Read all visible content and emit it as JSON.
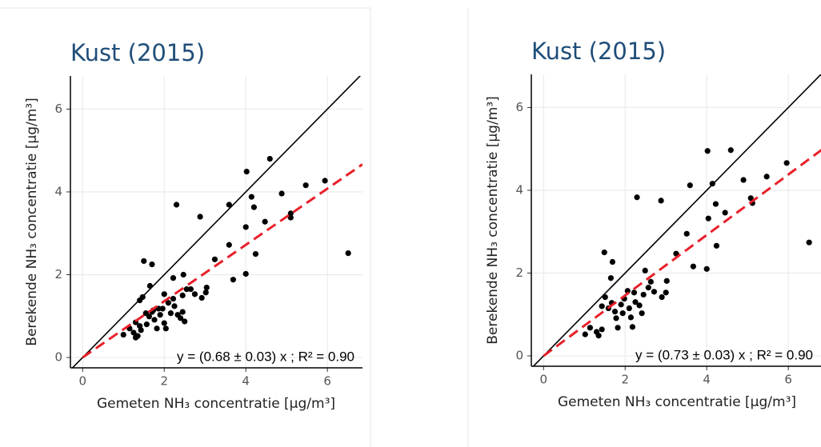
{
  "chart_data": [
    {
      "type": "scatter",
      "title": "Kust (2015)",
      "x_label": "Gemeten NH₃ concentratie [µg/m³]",
      "y_label": "Berekende NH₃ concentratie [µg/m³]",
      "annotation": "y = (0.68 ± 0.03) x ; R² = 0.90",
      "fit_slope": 0.68,
      "color": "#000000",
      "fit_color": "#e8202a",
      "grid": true,
      "xlim": [
        -0.3,
        6.86
      ],
      "ylim": [
        -0.25,
        6.8
      ],
      "xticks": [
        0,
        2,
        4,
        6
      ],
      "yticks": [
        0,
        2,
        4,
        6
      ],
      "x": [
        1.0,
        1.15,
        1.25,
        1.35,
        1.43,
        1.3,
        1.4,
        1.5,
        1.7,
        1.65,
        1.47,
        1.4,
        1.55,
        1.63,
        1.7,
        1.76,
        1.82,
        1.9,
        1.86,
        1.96,
        2.0,
        2.04,
        2.1,
        2.16,
        2.22,
        2.25,
        2.22,
        2.3,
        2.33,
        2.4,
        2.45,
        2.5,
        2.45,
        2.55,
        2.65,
        2.75,
        2.92,
        3.02,
        2.88,
        3.04,
        3.24,
        3.59,
        3.59,
        3.69,
        4.0,
        4.0,
        4.02,
        4.14,
        4.2,
        4.24,
        4.47,
        4.59,
        4.88,
        5.1,
        5.1,
        5.47,
        5.94,
        6.51,
        1.3,
        1.73,
        1.57,
        2.0,
        2.47
      ],
      "values": [
        0.55,
        0.7,
        0.6,
        0.52,
        0.66,
        0.48,
        0.76,
        2.33,
        2.25,
        1.73,
        1.46,
        1.38,
        1.07,
        0.99,
        1.1,
        0.91,
        0.7,
        1.03,
        1.18,
        1.18,
        0.83,
        0.7,
        1.32,
        1.07,
        1.42,
        1.24,
        1.92,
        3.69,
        1.03,
        0.95,
        1.1,
        0.87,
        1.5,
        1.65,
        1.65,
        1.53,
        1.44,
        1.57,
        3.4,
        1.69,
        2.37,
        3.69,
        2.72,
        1.88,
        2.02,
        3.15,
        4.49,
        3.88,
        3.63,
        2.5,
        3.28,
        4.8,
        3.96,
        3.48,
        3.38,
        4.16,
        4.27,
        2.52,
        0.85,
        1.14,
        0.8,
        1.53,
        2.0
      ]
    },
    {
      "type": "scatter",
      "title": "Kust (2015)",
      "x_label": "Gemeten NH₃ concentratie [µg/m³]",
      "y_label": "Berekende NH₃ concentratie [µg/m³]",
      "annotation": "y = (0.73 ± 0.03) x ; R² = 0.90",
      "fit_slope": 0.73,
      "color": "#000000",
      "fit_color": "#e8202a",
      "grid": true,
      "xlim": [
        -0.3,
        6.86
      ],
      "ylim": [
        -0.25,
        6.8
      ],
      "xticks": [
        0,
        2,
        4,
        6
      ],
      "yticks": [
        0,
        2,
        4,
        6
      ],
      "x": [
        1.02,
        1.14,
        1.3,
        1.35,
        1.43,
        1.49,
        1.69,
        1.65,
        1.51,
        1.43,
        1.59,
        1.67,
        1.75,
        1.78,
        1.82,
        1.9,
        1.94,
        1.98,
        2.06,
        2.1,
        2.14,
        2.18,
        2.22,
        2.25,
        2.29,
        2.35,
        2.41,
        2.45,
        2.49,
        2.57,
        2.63,
        2.71,
        2.88,
        2.9,
        3.0,
        3.02,
        3.25,
        3.51,
        3.59,
        3.67,
        4.0,
        4.04,
        4.02,
        4.14,
        4.22,
        4.24,
        4.45,
        4.59,
        4.9,
        5.08,
        5.12,
        5.47,
        5.96,
        6.51
      ],
      "values": [
        0.52,
        0.68,
        0.58,
        0.49,
        0.64,
        2.5,
        2.27,
        1.88,
        1.42,
        1.2,
        1.15,
        1.28,
        1.07,
        0.91,
        0.68,
        1.24,
        1.03,
        1.38,
        1.57,
        1.15,
        0.93,
        0.7,
        1.53,
        1.3,
        3.83,
        1.22,
        1.03,
        1.48,
        2.06,
        1.65,
        1.79,
        1.55,
        3.75,
        1.42,
        1.53,
        1.81,
        2.47,
        2.95,
        4.12,
        2.16,
        2.1,
        3.32,
        4.95,
        4.16,
        3.67,
        2.66,
        3.46,
        4.97,
        4.25,
        3.81,
        3.69,
        4.33,
        4.66,
        2.74
      ]
    }
  ]
}
